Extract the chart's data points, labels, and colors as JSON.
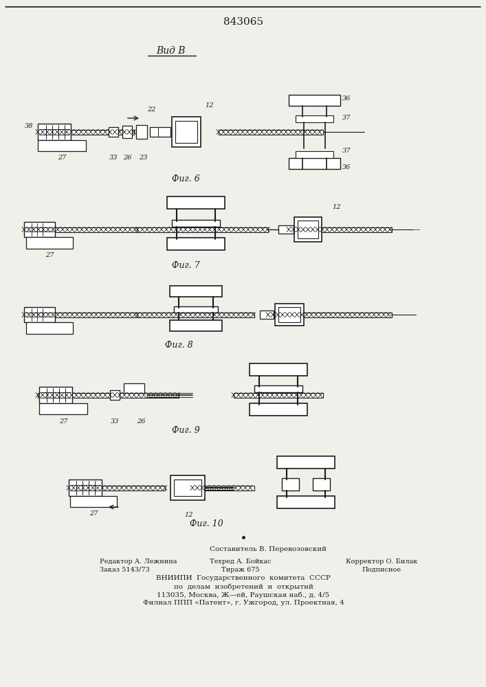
{
  "title": "843065",
  "bg_color": "#f0f0eb",
  "line_color": "#1a1a1a",
  "fig_labels": [
    "Фиг. 6",
    "Фиг. 7",
    "Фиг. 8",
    "Фиг. 9",
    "Фиг. 10"
  ],
  "view_label": "Вид В",
  "bottom_text_lines": [
    "Составитель В. Перевозовский",
    "Редактор А. Лежнина",
    "Техред А. Бойкас",
    "Корректор О. Билак",
    "Заказ 5143/73",
    "Тираж 675",
    "Подписное",
    "ВНИИПИ  Государственного  комитета  СССР",
    "по  делам  изобретений  и  открытий",
    "113035, Москва, Ж—ей, Раушская наб., д. 4/5",
    "Филиал ППП «Патент», г. Ужгород, ул. Проектная, 4"
  ]
}
